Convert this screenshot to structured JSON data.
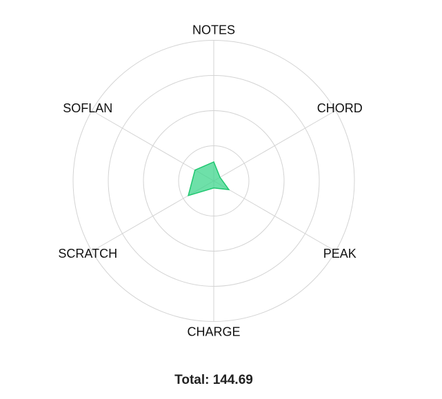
{
  "chart_data": {
    "type": "radar",
    "categories": [
      "NOTES",
      "CHORD",
      "PEAK",
      "CHARGE",
      "SCRATCH",
      "SOFLAN"
    ],
    "values": [
      27.0,
      10.2,
      24.8,
      10.1,
      41.8,
      30.8
    ],
    "rlim": [
      0,
      200
    ],
    "ring_step": 50,
    "grid": true,
    "fill_color": "#3dd68c",
    "stroke_color": "#1fc770",
    "grid_color": "#d3d3d3"
  },
  "total": {
    "label": "Total: 144.69"
  }
}
